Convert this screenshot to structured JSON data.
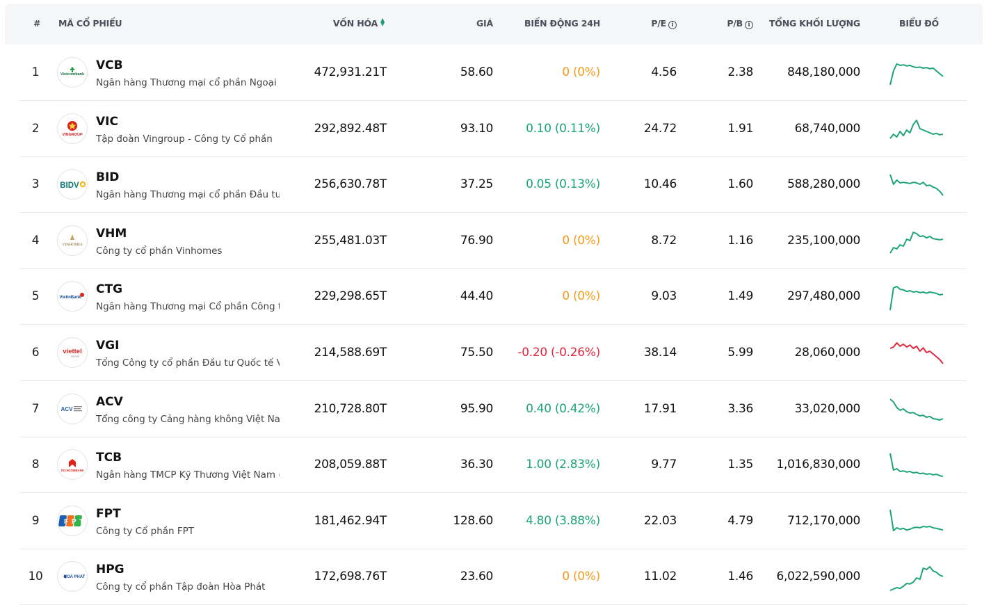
{
  "header": {
    "rank": "#",
    "symbol": "MÃ CỔ PHIẾU",
    "market_cap": "VỐN HÓA",
    "price": "GIÁ",
    "change_24h": "BIẾN ĐỘNG 24H",
    "pe": "P/E",
    "pb": "P/B",
    "volume": "TỔNG KHỐI LƯỢNG",
    "chart": "BIỂU ĐỒ"
  },
  "colors": {
    "up": "#1ca37a",
    "down": "#e0283e",
    "neutral": "#f29a1a"
  },
  "rows": [
    {
      "rank": "1",
      "symbol": "VCB",
      "name": "Ngân hàng Thương mại cổ phần Ngoại th...",
      "market_cap": "472,931.21T",
      "price": "58.60",
      "change": "0 (0%)",
      "trend": "neutral",
      "pe": "4.56",
      "pb": "2.38",
      "volume": "848,180,000",
      "logo": "vietcombank-logo",
      "logo_text": "Vietcombank",
      "spark_color": "#1ca37a",
      "spark": [
        0.1,
        0.6,
        0.85,
        0.8,
        0.82,
        0.78,
        0.8,
        0.75,
        0.72,
        0.74,
        0.7,
        0.72,
        0.68,
        0.7,
        0.6,
        0.5,
        0.4
      ]
    },
    {
      "rank": "2",
      "symbol": "VIC",
      "name": "Tập đoàn Vingroup - Công ty Cổ phần",
      "market_cap": "292,892.48T",
      "price": "93.10",
      "change": "0.10 (0.11%)",
      "trend": "up",
      "pe": "24.72",
      "pb": "1.91",
      "volume": "68,740,000",
      "logo": "vingroup-logo",
      "logo_text": "VINGROUP",
      "spark_color": "#1ca37a",
      "spark": [
        0.2,
        0.35,
        0.25,
        0.45,
        0.3,
        0.5,
        0.4,
        0.7,
        0.85,
        0.55,
        0.5,
        0.45,
        0.4,
        0.35,
        0.38,
        0.33,
        0.35
      ]
    },
    {
      "rank": "3",
      "symbol": "BID",
      "name": "Ngân hàng Thương mại cổ phần Đầu tư v...",
      "market_cap": "256,630.78T",
      "price": "37.25",
      "change": "0.05 (0.13%)",
      "trend": "up",
      "pe": "10.46",
      "pb": "1.60",
      "volume": "588,280,000",
      "logo": "bidv-logo",
      "logo_text": "BIDV",
      "spark_color": "#1ca37a",
      "spark": [
        0.9,
        0.55,
        0.7,
        0.6,
        0.62,
        0.6,
        0.58,
        0.62,
        0.6,
        0.55,
        0.62,
        0.5,
        0.52,
        0.45,
        0.4,
        0.3,
        0.15
      ]
    },
    {
      "rank": "4",
      "symbol": "VHM",
      "name": "Công ty cổ phần Vinhomes",
      "market_cap": "255,481.03T",
      "price": "76.90",
      "change": "0 (0%)",
      "trend": "neutral",
      "pe": "8.72",
      "pb": "1.16",
      "volume": "235,100,000",
      "logo": "vinhomes-logo",
      "logo_text": "VINHOMES",
      "spark_color": "#1ca37a",
      "spark": [
        0.1,
        0.3,
        0.25,
        0.4,
        0.35,
        0.6,
        0.55,
        0.85,
        0.8,
        0.7,
        0.72,
        0.65,
        0.7,
        0.62,
        0.6,
        0.58,
        0.6
      ]
    },
    {
      "rank": "5",
      "symbol": "CTG",
      "name": "Ngân hàng Thương mại Cổ phần Công th...",
      "market_cap": "229,298.65T",
      "price": "44.40",
      "change": "0 (0%)",
      "trend": "neutral",
      "pe": "9.03",
      "pb": "1.49",
      "volume": "297,480,000",
      "logo": "vietinbank-logo",
      "logo_text": "VietinBank",
      "spark_color": "#1ca37a",
      "spark": [
        0.05,
        0.85,
        0.9,
        0.8,
        0.78,
        0.72,
        0.75,
        0.7,
        0.72,
        0.68,
        0.7,
        0.66,
        0.7,
        0.68,
        0.65,
        0.6,
        0.62
      ]
    },
    {
      "rank": "6",
      "symbol": "VGI",
      "name": "Tổng Công ty cổ phần Đầu tư Quốc tế Vi...",
      "market_cap": "214,588.69T",
      "price": "75.50",
      "change": "-0.20 (-0.26%)",
      "trend": "down",
      "pe": "38.14",
      "pb": "5.99",
      "volume": "28,060,000",
      "logo": "viettel-logo",
      "logo_text": "viettel",
      "spark_color": "#e0283e",
      "spark": [
        0.7,
        0.75,
        0.9,
        0.78,
        0.85,
        0.75,
        0.82,
        0.7,
        0.78,
        0.6,
        0.72,
        0.55,
        0.6,
        0.5,
        0.4,
        0.3,
        0.15
      ]
    },
    {
      "rank": "7",
      "symbol": "ACV",
      "name": "Tổng công ty Cảng hàng không Việt Nam...",
      "market_cap": "210,728.80T",
      "price": "95.90",
      "change": "0.40 (0.42%)",
      "trend": "up",
      "pe": "17.91",
      "pb": "3.36",
      "volume": "33,020,000",
      "logo": "acv-logo",
      "logo_text": "ACV",
      "spark_color": "#1ca37a",
      "spark": [
        0.9,
        0.8,
        0.6,
        0.5,
        0.55,
        0.45,
        0.4,
        0.42,
        0.35,
        0.3,
        0.32,
        0.25,
        0.28,
        0.2,
        0.18,
        0.15,
        0.2
      ]
    },
    {
      "rank": "8",
      "symbol": "TCB",
      "name": "Ngân hàng TMCP Kỹ Thương Việt Nam (Te...",
      "market_cap": "208,059.88T",
      "price": "36.30",
      "change": "1.00 (2.83%)",
      "trend": "up",
      "pe": "9.77",
      "pb": "1.35",
      "volume": "1,016,830,000",
      "logo": "techcombank-logo",
      "logo_text": "TECHCOMBANK",
      "spark_color": "#1ca37a",
      "spark": [
        0.95,
        0.35,
        0.4,
        0.3,
        0.32,
        0.28,
        0.3,
        0.25,
        0.27,
        0.22,
        0.24,
        0.2,
        0.22,
        0.18,
        0.2,
        0.15,
        0.12
      ]
    },
    {
      "rank": "9",
      "symbol": "FPT",
      "name": "Công ty Cổ phần FPT",
      "market_cap": "181,462.94T",
      "price": "128.60",
      "change": "4.80 (3.88%)",
      "trend": "up",
      "pe": "22.03",
      "pb": "4.79",
      "volume": "712,170,000",
      "logo": "fpt-logo",
      "logo_text": "FPT",
      "spark_color": "#1ca37a",
      "spark": [
        0.95,
        0.2,
        0.3,
        0.25,
        0.28,
        0.22,
        0.25,
        0.3,
        0.32,
        0.3,
        0.35,
        0.33,
        0.35,
        0.3,
        0.28,
        0.25,
        0.22
      ]
    },
    {
      "rank": "10",
      "symbol": "HPG",
      "name": "Công ty cổ phần Tập đoàn Hòa Phát",
      "market_cap": "172,698.76T",
      "price": "23.60",
      "change": "0 (0%)",
      "trend": "neutral",
      "pe": "11.02",
      "pb": "1.46",
      "volume": "6,022,590,000",
      "logo": "hoa-phat-logo",
      "logo_text": "HOA PHAT",
      "spark_color": "#1ca37a",
      "spark": [
        0.05,
        0.1,
        0.15,
        0.12,
        0.2,
        0.3,
        0.28,
        0.35,
        0.5,
        0.45,
        0.85,
        0.8,
        0.9,
        0.75,
        0.7,
        0.6,
        0.55
      ]
    }
  ]
}
